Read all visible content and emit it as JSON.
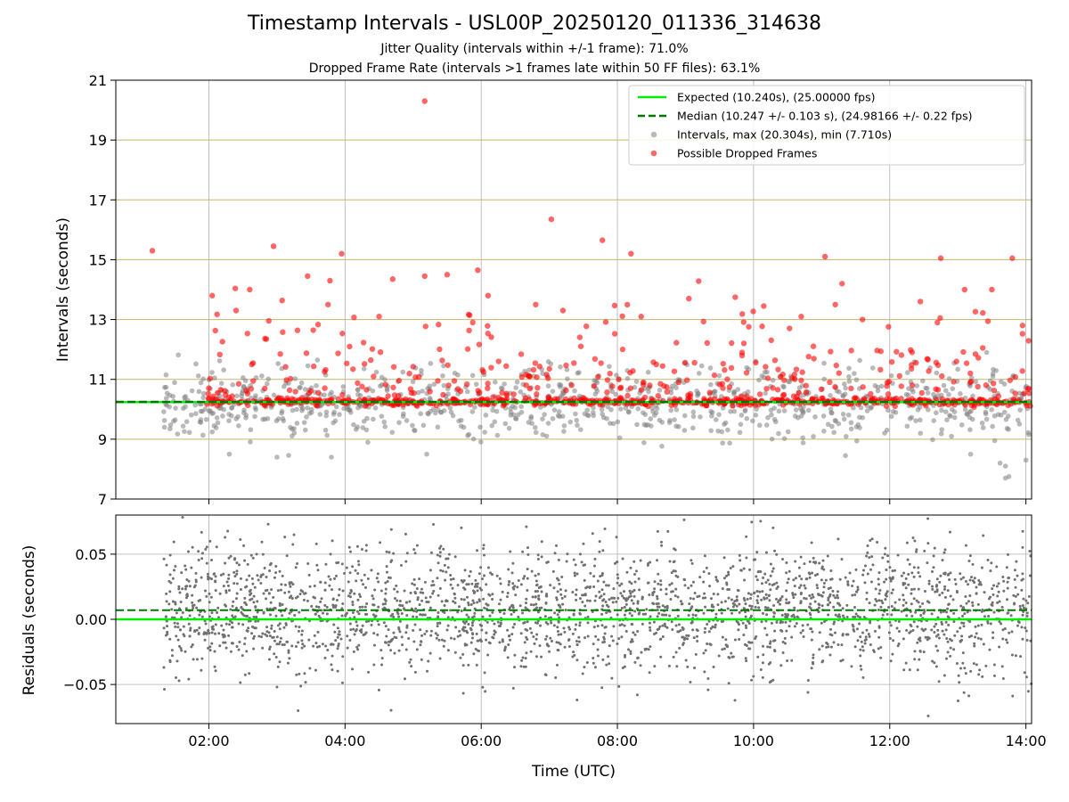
{
  "chart_data": [
    {
      "type": "scatter",
      "title": "Timestamp Intervals - USL00P_20250120_011336_314638",
      "subtitle_lines": [
        "Jitter Quality (intervals within +/-1 frame): 71.0%",
        "Dropped Frame Rate (intervals >1 frames late within 50 FF files): 63.1%"
      ],
      "ylabel": "Intervals (seconds)",
      "xlabel": "",
      "xlim_hours": [
        0.6333,
        14.0833
      ],
      "ylim": [
        7,
        21
      ],
      "yticks": [
        "7",
        "9",
        "11",
        "13",
        "15",
        "17",
        "19",
        "21"
      ],
      "xticks": [
        "02:00",
        "04:00",
        "06:00",
        "08:00",
        "10:00",
        "12:00",
        "14:00"
      ],
      "grid": true,
      "horizontal_reference_grid_color": "#c9b46a",
      "legend_position": "upper right",
      "series": [
        {
          "name": "Expected (10.240s), (25.00000 fps)",
          "kind": "line",
          "style": "solid",
          "color": "#00ee00",
          "y": 10.24
        },
        {
          "name": "Median (10.247 +/- 0.103 s), (24.98166 +/- 0.22 fps)",
          "kind": "line",
          "style": "dashed",
          "color": "#007700",
          "y": 10.247
        },
        {
          "name": "Intervals, max (20.304s), min (7.710s)",
          "kind": "scatter",
          "color": "#808080"
        },
        {
          "name": "Possible Dropped Frames",
          "kind": "scatter",
          "color": "#ff0000"
        }
      ],
      "summary": {
        "max_interval_s": 20.304,
        "min_interval_s": 7.71,
        "x_start_hours": 1.33,
        "x_end_hours": 14.08
      },
      "notable_points": [
        [
          5.17,
          20.3
        ],
        [
          7.03,
          16.35
        ],
        [
          7.78,
          15.65
        ],
        [
          2.95,
          15.45
        ],
        [
          1.17,
          15.3
        ],
        [
          3.95,
          15.2
        ],
        [
          8.2,
          15.2
        ],
        [
          11.05,
          15.1
        ],
        [
          12.75,
          15.05
        ],
        [
          13.8,
          15.05
        ],
        [
          5.95,
          14.65
        ],
        [
          3.45,
          14.45
        ],
        [
          5.17,
          14.45
        ],
        [
          5.5,
          14.5
        ],
        [
          4.7,
          14.35
        ],
        [
          11.3,
          14.2
        ],
        [
          2.05,
          13.8
        ],
        [
          6.1,
          13.8
        ],
        [
          9.05,
          13.7
        ],
        [
          10.15,
          13.45
        ],
        [
          6.8,
          13.5
        ],
        [
          7.2,
          13.3
        ],
        [
          12.45,
          13.6
        ],
        [
          13.1,
          14.0
        ],
        [
          13.5,
          14.0
        ],
        [
          2.6,
          14.0
        ],
        [
          2.4,
          13.3
        ],
        [
          3.75,
          13.5
        ],
        [
          4.5,
          13.1
        ],
        [
          8.35,
          13.1
        ],
        [
          10.7,
          13.1
        ],
        [
          11.2,
          13.5
        ],
        [
          11.6,
          13.0
        ],
        [
          12.7,
          12.9
        ],
        [
          13.95,
          12.8
        ],
        [
          13.7,
          7.7
        ],
        [
          13.75,
          7.75
        ],
        [
          13.62,
          8.2
        ],
        [
          13.7,
          8.1
        ],
        [
          14.0,
          8.3
        ],
        [
          3.0,
          8.4
        ],
        [
          3.8,
          8.4
        ],
        [
          2.3,
          8.5
        ],
        [
          5.2,
          8.5
        ],
        [
          11.35,
          8.45
        ]
      ]
    },
    {
      "type": "scatter",
      "title": "",
      "xlabel": "Time (UTC)",
      "ylabel": "Residuals (seconds)",
      "xlim_hours": [
        0.6333,
        14.0833
      ],
      "ylim": [
        -0.08,
        0.08
      ],
      "yticks": [
        "−0.05",
        "0.00",
        "0.05"
      ],
      "ytick_values": [
        -0.05,
        0.0,
        0.05
      ],
      "xticks": [
        "02:00",
        "04:00",
        "06:00",
        "08:00",
        "10:00",
        "12:00",
        "14:00"
      ],
      "grid": true,
      "series": [
        {
          "name": "",
          "kind": "line",
          "style": "solid",
          "color": "#00ee00",
          "y": 0.0
        },
        {
          "name": "",
          "kind": "line",
          "style": "dashed",
          "color": "#007700",
          "y": 0.007
        },
        {
          "name": "",
          "kind": "scatter",
          "color": "#707070"
        }
      ],
      "summary": {
        "spread_sd_s": 0.025,
        "x_start_hours": 1.33,
        "x_end_hours": 14.08
      }
    }
  ]
}
